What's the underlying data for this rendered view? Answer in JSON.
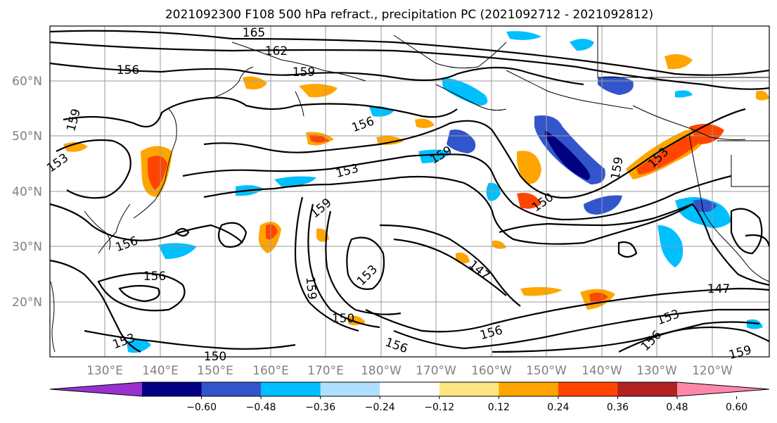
{
  "title": "2021092300 F108 500 hPa refract., precipitation PC (2021092712 - 2021092812)",
  "lat_labels": [
    "60°N",
    "50°N",
    "40°N",
    "30°N",
    "20°N"
  ],
  "lon_labels": [
    "130°E",
    "140°E",
    "150°E",
    "160°E",
    "170°E",
    "180°W",
    "170°W",
    "160°W",
    "150°W",
    "140°W",
    "130°W",
    "120°W"
  ],
  "contour_labels": [
    "165",
    "162",
    "156",
    "159",
    "159",
    "156",
    "153",
    "153",
    "159",
    "159",
    "156",
    "150",
    "159",
    "153",
    "147",
    "156",
    "159",
    "150",
    "156",
    "147",
    "153",
    "156",
    "159",
    "156",
    "153",
    "153",
    "150"
  ],
  "colorbar": {
    "levels": [
      "−0.60",
      "−0.48",
      "−0.36",
      "−0.24",
      "−0.12",
      "0.12",
      "0.24",
      "0.36",
      "0.48",
      "0.60"
    ],
    "colors": [
      "#9b30d0",
      "#000080",
      "#3355cc",
      "#00bfff",
      "#b0e0ff",
      "#ffffff",
      "#ffe680",
      "#ffa500",
      "#ff4500",
      "#b22222",
      "#ff88aa"
    ]
  }
}
